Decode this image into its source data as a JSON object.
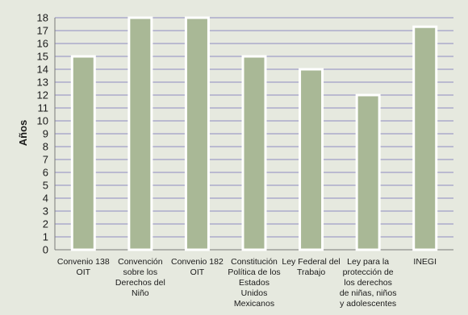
{
  "chart_data": {
    "type": "bar",
    "title": "",
    "xlabel": "",
    "ylabel": "Años",
    "ylim": [
      0,
      18
    ],
    "yticks": [
      0,
      1,
      2,
      3,
      4,
      5,
      6,
      7,
      8,
      9,
      10,
      11,
      12,
      13,
      14,
      15,
      16,
      17,
      18
    ],
    "grid": true,
    "categories": [
      [
        "Convenio 138",
        "OIT"
      ],
      [
        "Convención",
        "sobre los",
        "Derechos del",
        "Niño"
      ],
      [
        "Convenio 182",
        "OIT"
      ],
      [
        "Constitución",
        "Política de los",
        "Estados",
        "Unidos",
        "Mexicanos"
      ],
      [
        "Ley Federal del",
        "Trabajo"
      ],
      [
        "Ley para la",
        "protección de",
        "los derechos",
        "de niñas, niños",
        "y adolescentes"
      ],
      [
        "INEGI"
      ]
    ],
    "values": [
      15,
      18,
      18,
      15,
      14,
      12,
      17.3
    ],
    "colors": {
      "bar": "#a9b896",
      "bar_outline": "#ffffff",
      "gridline": "#8d8cc0",
      "axis": "#7a7a7a",
      "background": "#e6e9df"
    }
  }
}
